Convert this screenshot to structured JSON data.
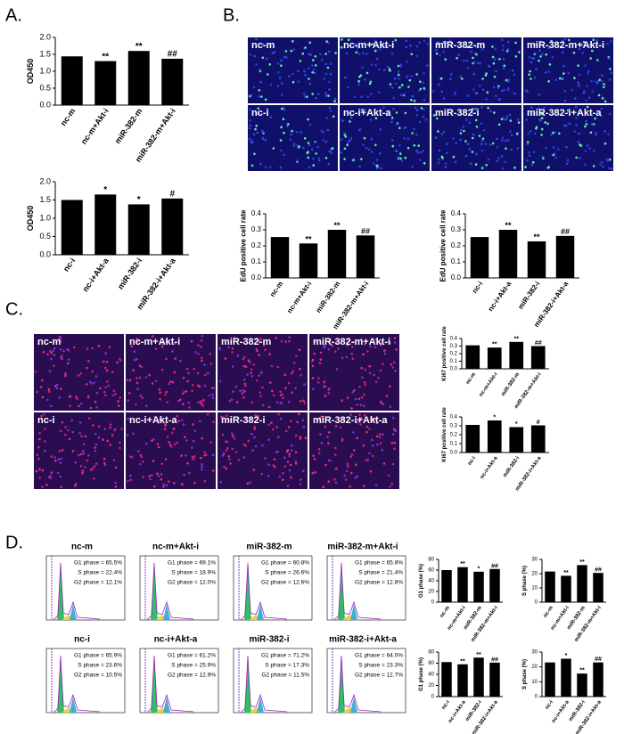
{
  "panel_labels": [
    "A.",
    "B.",
    "C.",
    "D."
  ],
  "edu_images": {
    "labels": [
      "nc-m",
      "nc-m+Akt-i",
      "miR-382-m",
      "miR-382-m+Akt-i",
      "nc-i",
      "nc-i+Akt-a",
      "miR-382-i",
      "miR-382-i+Akt-a"
    ]
  },
  "ki67_images": {
    "labels": [
      "nc-m",
      "nc-m+Akt-i",
      "miR-382-m",
      "miR-382-m+Akt-i",
      "nc-i",
      "nc-i+Akt-a",
      "miR-382-i",
      "miR-382-i+Akt-a"
    ]
  },
  "flow": [
    {
      "title": "nc-m",
      "g1": "G1 phase = 65.5%",
      "s": "S phase = 22.4%",
      "g2": "G2 phase = 12.1%"
    },
    {
      "title": "nc-m+Akt-i",
      "g1": "G1 phase = 69.1%",
      "s": "S phase = 18.9%",
      "g2": "G2 phase = 12.0%"
    },
    {
      "title": "miR-382-m",
      "g1": "G1 phase = 60.8%",
      "s": "S phase = 26.6%",
      "g2": "G2 phase = 12.6%"
    },
    {
      "title": "miR-382-m+Akt-i",
      "g1": "G1 phase = 65.8%",
      "s": "S phase = 21.4%",
      "g2": "G2 phase = 12.8%"
    },
    {
      "title": "nc-i",
      "g1": "G1 phase = 65.9%",
      "s": "S phase = 23.6%",
      "g2": "G2 phase = 10.5%"
    },
    {
      "title": "nc-i+Akt-a",
      "g1": "G1 phase = 61.2%",
      "s": "S phase = 25.9%",
      "g2": "G2 phase = 12.9%"
    },
    {
      "title": "miR-382-i",
      "g1": "G1 phase = 71.2%",
      "s": "S phase = 17.3%",
      "g2": "G2 phase = 11.5%"
    },
    {
      "title": "miR-382-i+Akt-a",
      "g1": "G1 phase = 64.0%",
      "s": "S phase = 23.3%",
      "g2": "G2 phase = 12.7%"
    }
  ],
  "chart_data": [
    {
      "type": "bar",
      "ylabel": "OD450",
      "color": "#000000",
      "categories": [
        "nc-m",
        "nc-m+Akt-i",
        "miR-382-m",
        "miR-382-m+Akt-i"
      ],
      "values": [
        1.44,
        1.3,
        1.6,
        1.37
      ],
      "annotations": [
        null,
        "**",
        "**",
        "##"
      ],
      "ylim": [
        0,
        2.0
      ],
      "yticks": [
        {
          "value": 0,
          "label": "0.0"
        },
        0.5,
        {
          "value": 1,
          "label": "1.0"
        },
        1.5,
        {
          "value": 2,
          "label": "2.0"
        }
      ]
    },
    {
      "type": "bar",
      "ylabel": "OD450",
      "color": "#000000",
      "categories": [
        "nc-i",
        "nc-i+Akt-a",
        "miR-382-i",
        "miR-382-i+Akt-a"
      ],
      "values": [
        1.5,
        1.65,
        1.38,
        1.54
      ],
      "annotations": [
        null,
        "*",
        "*",
        "#"
      ],
      "ylim": [
        0,
        2.0
      ],
      "yticks": [
        {
          "value": 0,
          "label": "0.0"
        },
        0.5,
        {
          "value": 1,
          "label": "1.0"
        },
        1.5,
        {
          "value": 2,
          "label": "2.0"
        }
      ]
    },
    {
      "type": "bar",
      "ylabel": "EdU positive cell rate",
      "color": "#000000",
      "categories": [
        "nc-m",
        "nc-m+Akt-i",
        "miR-382-m",
        "miR-382-m+Akt-i"
      ],
      "values": [
        0.255,
        0.215,
        0.3,
        0.265
      ],
      "annotations": [
        null,
        "**",
        "**",
        "##"
      ],
      "ylim": [
        0,
        0.4
      ],
      "yticks": [
        {
          "value": 0,
          "label": "0.0"
        },
        0.1,
        0.2,
        0.3,
        0.4
      ]
    },
    {
      "type": "bar",
      "ylabel": "EdU positive cell rate",
      "color": "#000000",
      "categories": [
        "nc-i",
        "nc-i+Akt-a",
        "miR-382-i",
        "miR-382-i+Akt-a"
      ],
      "values": [
        0.255,
        0.3,
        0.228,
        0.262
      ],
      "annotations": [
        null,
        "**",
        "**",
        "##"
      ],
      "ylim": [
        0,
        0.4
      ],
      "yticks": [
        {
          "value": 0,
          "label": "0.0"
        },
        0.1,
        0.2,
        0.3,
        0.4
      ]
    },
    {
      "type": "bar",
      "ylabel": "Ki67 positive cell rate",
      "color": "#000000",
      "categories": [
        "nc-m",
        "nc-m+Akt-i",
        "miR-382-m",
        "miR-382-m+Akt-i"
      ],
      "values": [
        0.31,
        0.28,
        0.355,
        0.3
      ],
      "annotations": [
        null,
        "**",
        "**",
        "##"
      ],
      "ylim": [
        0,
        0.4
      ],
      "yticks": [
        {
          "value": 0,
          "label": "0.0"
        },
        0.1,
        0.2,
        0.3,
        0.4
      ]
    },
    {
      "type": "bar",
      "ylabel": "Ki67 positive cell rate",
      "color": "#000000",
      "categories": [
        "nc-i",
        "nc-i+Akt-a",
        "miR-382-i",
        "miR-382-i+Akt-a"
      ],
      "values": [
        0.31,
        0.36,
        0.285,
        0.305
      ],
      "annotations": [
        null,
        "*",
        "*",
        "#"
      ],
      "ylim": [
        0,
        0.4
      ],
      "yticks": [
        {
          "value": 0,
          "label": "0.0"
        },
        0.1,
        0.2,
        0.3,
        0.4
      ]
    },
    {
      "type": "bar",
      "ylabel": "G1 phase (%)",
      "color": "#000000",
      "categories": [
        "nc-m",
        "nc-m+Akt-i",
        "miR-382-m",
        "miR-382-m+Akt-i"
      ],
      "values": [
        60,
        65.5,
        57,
        62
      ],
      "annotations": [
        null,
        "**",
        "*",
        "##"
      ],
      "ylim": [
        0,
        80
      ],
      "yticks": [
        0,
        20,
        40,
        60,
        80
      ]
    },
    {
      "type": "bar",
      "ylabel": "S phase (%)",
      "color": "#000000",
      "categories": [
        "nc-m",
        "nc-m+Akt-i",
        "miR-382-m",
        "miR-382-m+Akt-i"
      ],
      "values": [
        21.5,
        18.5,
        26,
        20.5
      ],
      "annotations": [
        null,
        "**",
        "**",
        "##"
      ],
      "ylim": [
        0,
        30
      ],
      "yticks": [
        0,
        10,
        20,
        30
      ]
    },
    {
      "type": "bar",
      "ylabel": "G1 phase (%)",
      "color": "#000000",
      "categories": [
        "nc-i",
        "nc-i+Akt-a",
        "miR-382-i",
        "miR-382-i+Akt-a"
      ],
      "values": [
        62,
        58,
        70,
        61
      ],
      "annotations": [
        null,
        "**",
        "**",
        "##"
      ],
      "ylim": [
        0,
        80
      ],
      "yticks": [
        0,
        20,
        40,
        60,
        80
      ]
    },
    {
      "type": "bar",
      "ylabel": "S phase (%)",
      "color": "#000000",
      "categories": [
        "nc-i",
        "nc-i+Akt-a",
        "miR-382-i",
        "miR-382-i+Akt-a"
      ],
      "values": [
        23,
        25.5,
        15.5,
        23
      ],
      "annotations": [
        null,
        "*",
        "**",
        "##"
      ],
      "ylim": [
        0,
        30
      ],
      "yticks": [
        0,
        10,
        20,
        30
      ]
    }
  ]
}
